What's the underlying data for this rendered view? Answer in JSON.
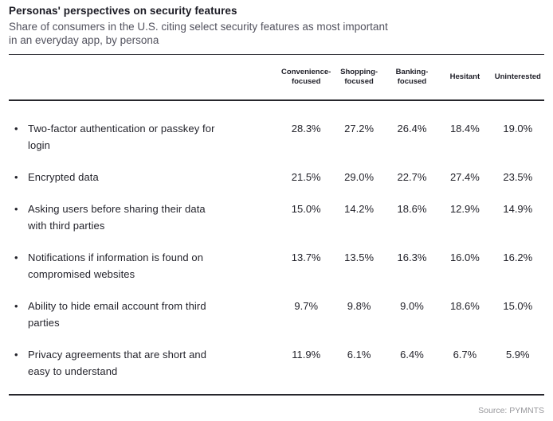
{
  "header": {
    "title": "Personas' perspectives on security features",
    "subtitle_line1": "Share of consumers in the U.S. citing select security features as most important",
    "subtitle_line2": "in an everyday app, by persona"
  },
  "table": {
    "bullet": "•",
    "columns": [
      "Convenience-focused",
      "Shopping-focused",
      "Banking-focused",
      "Hesitant",
      "Uninterested"
    ],
    "rows": [
      {
        "feature": "Two-factor authentication or passkey for login",
        "values": [
          "28.3%",
          "27.2%",
          "26.4%",
          "18.4%",
          "19.0%"
        ]
      },
      {
        "feature": "Encrypted data",
        "values": [
          "21.5%",
          "29.0%",
          "22.7%",
          "27.4%",
          "23.5%"
        ]
      },
      {
        "feature": "Asking users before sharing their data with third parties",
        "values": [
          "15.0%",
          "14.2%",
          "18.6%",
          "12.9%",
          "14.9%"
        ]
      },
      {
        "feature": "Notifications if information is found on compromised websites",
        "values": [
          "13.7%",
          "13.5%",
          "16.3%",
          "16.0%",
          "16.2%"
        ]
      },
      {
        "feature": "Ability to hide email account from third parties",
        "values": [
          "9.7%",
          "9.8%",
          "9.0%",
          "18.6%",
          "15.0%"
        ]
      },
      {
        "feature": "Privacy agreements that are short and easy to understand",
        "values": [
          "11.9%",
          "6.1%",
          "6.4%",
          "6.7%",
          "5.9%"
        ]
      }
    ]
  },
  "footer": {
    "source": "Source: PYMNTS"
  },
  "colors": {
    "title_text": "#1b1b24",
    "body_text": "#23232b",
    "subtitle_text": "#52525e",
    "rule": "#26262c",
    "source_text": "#97979b",
    "background": "#ffffff"
  },
  "chart_data": {
    "type": "table",
    "title": "Personas' perspectives on security features",
    "subtitle": "Share of consumers in the U.S. citing select security features as most important in an everyday app, by persona",
    "columns": [
      "Convenience-focused",
      "Shopping-focused",
      "Banking-focused",
      "Hesitant",
      "Uninterested"
    ],
    "rows": [
      {
        "label": "Two-factor authentication or passkey for login",
        "values_pct": [
          28.3,
          27.2,
          26.4,
          18.4,
          19.0
        ]
      },
      {
        "label": "Encrypted data",
        "values_pct": [
          21.5,
          29.0,
          22.7,
          27.4,
          23.5
        ]
      },
      {
        "label": "Asking users before sharing their data with third parties",
        "values_pct": [
          15.0,
          14.2,
          18.6,
          12.9,
          14.9
        ]
      },
      {
        "label": "Notifications if information is found on compromised websites",
        "values_pct": [
          13.7,
          13.5,
          16.3,
          16.0,
          16.2
        ]
      },
      {
        "label": "Ability to hide email account from third parties",
        "values_pct": [
          9.7,
          9.8,
          9.0,
          18.6,
          15.0
        ]
      },
      {
        "label": "Privacy agreements that are short and easy to understand",
        "values_pct": [
          11.9,
          6.1,
          6.4,
          6.7,
          5.9
        ]
      }
    ],
    "source": "Source: PYMNTS",
    "units": "percent"
  }
}
